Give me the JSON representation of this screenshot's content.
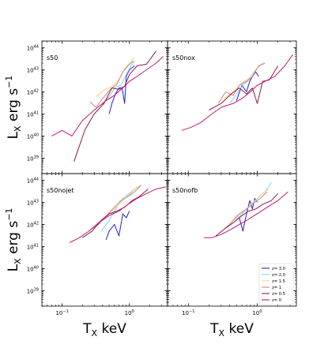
{
  "chart_data": {
    "type": "line",
    "x_scale": "log",
    "y_scale": "log",
    "xlim": [
      0.05,
      3.7
    ],
    "ylim": [
      2e+38,
      2e+44
    ],
    "xlabel": "T_X keV",
    "ylabel": "L_X erg s^-1",
    "xlabel_parts": {
      "main": "T",
      "sub": "X",
      "rest": " keV"
    },
    "ylabel_parts": {
      "main": "L",
      "sub": "X",
      "mid": " erg s",
      "sup": "−1"
    },
    "x_ticks": [
      {
        "value": 0.1,
        "base": "10",
        "exp": "−1"
      },
      {
        "value": 1,
        "base": "10",
        "exp": "0"
      }
    ],
    "y_ticks": [
      {
        "value": 1e+39,
        "base": "10",
        "exp": "39"
      },
      {
        "value": 1e+40,
        "base": "10",
        "exp": "40"
      },
      {
        "value": 1e+41,
        "base": "10",
        "exp": "41"
      },
      {
        "value": 1e+42,
        "base": "10",
        "exp": "42"
      },
      {
        "value": 1e+43,
        "base": "10",
        "exp": "43"
      },
      {
        "value": 1e+44,
        "base": "10",
        "exp": "44"
      }
    ],
    "legend": {
      "position": "lower-right",
      "entries": [
        {
          "label": "z= 3.0",
          "color": "#1f1fe0"
        },
        {
          "label": "z= 2.0",
          "color": "#7fd6f0"
        },
        {
          "label": "z= 1.5",
          "color": "#e8d48a"
        },
        {
          "label": "z= 1",
          "color": "#d98080"
        },
        {
          "label": "z= 0.5",
          "color": "#8b1a4a"
        },
        {
          "label": "z= 0",
          "color": "#c0177a"
        }
      ]
    },
    "panels": [
      {
        "title": "s50",
        "series": [
          {
            "name": "z= 3.0",
            "x": [
              0.5,
              0.55,
              0.62,
              0.7,
              0.78,
              0.85,
              0.9,
              1.0,
              1.2
            ],
            "y": [
              1e+41,
              3e+41,
              8e+41,
              1.5e+42,
              1.5e+42,
              3e+41,
              5e+42,
              1e+43,
              1.5e+43
            ]
          },
          {
            "name": "z= 2.0",
            "x": [
              0.4,
              0.5,
              0.6,
              0.75,
              0.9,
              1.05,
              1.2
            ],
            "y": [
              3e+41,
              6e+41,
              1.5e+42,
              2e+42,
              6e+42,
              1.5e+43,
              2.5e+43
            ]
          },
          {
            "name": "z= 1.5",
            "x": [
              0.32,
              0.42,
              0.55,
              0.7,
              0.85,
              1.0,
              1.2
            ],
            "y": [
              6e+41,
              1.2e+42,
              1.8e+42,
              3.5e+42,
              1.1e+43,
              2e+43,
              3.5e+43
            ]
          },
          {
            "name": "z= 1",
            "x": [
              0.26,
              0.32,
              0.4,
              0.52,
              0.65,
              0.8,
              0.95,
              1.15
            ],
            "y": [
              3.5e+41,
              2e+41,
              5e+41,
              1.3e+42,
              2.2e+42,
              8e+42,
              1.5e+43,
              2.5e+43
            ]
          },
          {
            "name": "z= 0.5",
            "x": [
              0.15,
              0.22,
              0.3,
              0.42,
              0.55,
              0.7,
              0.85,
              1.0,
              1.3,
              1.8,
              2.5
            ],
            "y": [
              7e+38,
              2e+40,
              1e+41,
              3e+41,
              1.5e+42,
              1.3e+42,
              1.8e+42,
              6e+42,
              1.5e+43,
              1.8e+43,
              7e+43
            ]
          },
          {
            "name": "z= 0",
            "x": [
              0.07,
              0.1,
              0.14,
              0.2,
              0.3,
              0.45,
              0.6,
              0.8,
              1.0,
              1.3,
              1.8,
              2.5,
              3.2
            ],
            "y": [
              1e+40,
              1.8e+40,
              1e+40,
              5e+40,
              1.5e+41,
              4e+41,
              7e+41,
              1.5e+42,
              3e+42,
              5e+42,
              1e+43,
              2e+43,
              4e+43
            ]
          }
        ]
      },
      {
        "title": "s50nox",
        "series": [
          {
            "name": "z= 3.0",
            "x": [
              0.5,
              0.6,
              0.7,
              0.78,
              0.85,
              0.95,
              1.05
            ],
            "y": [
              4e+41,
              2e+42,
              1e+42,
              3e+42,
              5e+42,
              8e+42,
              5e+42
            ]
          },
          {
            "name": "z= 2.0",
            "x": [
              0.4,
              0.5,
              0.62,
              0.8,
              1.0,
              1.2
            ],
            "y": [
              3e+41,
              8e+41,
              2e+42,
              4e+42,
              1.2e+43,
              2e+43
            ]
          },
          {
            "name": "z= 1.5",
            "x": [
              0.33,
              0.45,
              0.6,
              0.75,
              0.95,
              1.15
            ],
            "y": [
              5e+41,
              1e+42,
              2.5e+42,
              4e+42,
              1e+43,
              1.8e+43
            ]
          },
          {
            "name": "z= 1",
            "x": [
              0.27,
              0.35,
              0.45,
              0.55,
              0.7,
              0.85,
              1.05,
              1.3
            ],
            "y": [
              3e+41,
              1e+42,
              7e+41,
              2e+42,
              3e+42,
              5e+42,
              1.5e+43,
              2e+43
            ]
          },
          {
            "name": "z= 0.5",
            "x": [
              0.2,
              0.3,
              0.42,
              0.55,
              0.7,
              0.85,
              1.0,
              1.2,
              1.5,
              2.0
            ],
            "y": [
              1.5e+41,
              3e+41,
              8e+41,
              1.5e+42,
              8e+41,
              1.5e+42,
              3e+41,
              3e+42,
              3.5e+42,
              1.5e+43
            ]
          },
          {
            "name": "z= 0",
            "x": [
              0.08,
              0.11,
              0.15,
              0.22,
              0.3,
              0.45,
              0.6,
              0.8,
              1.0,
              1.3,
              1.8,
              2.5,
              3.3
            ],
            "y": [
              1.8e+40,
              2.5e+40,
              4e+40,
              1e+41,
              2e+41,
              3e+41,
              5e+41,
              1e+42,
              2e+42,
              3e+42,
              5e+42,
              1.5e+43,
              5e+43
            ]
          }
        ]
      },
      {
        "title": "s50nojet",
        "series": [
          {
            "name": "z= 3.0",
            "x": [
              0.45,
              0.5,
              0.6,
              0.7,
              0.8,
              0.9,
              1.0
            ],
            "y": [
              2e+41,
              5e+41,
              1e+42,
              3e+41,
              3e+42,
              2e+42,
              4e+42
            ]
          },
          {
            "name": "z= 2.0",
            "x": [
              0.38,
              0.5,
              0.65,
              0.8,
              1.0,
              1.2,
              1.5
            ],
            "y": [
              5e+41,
              1.5e+42,
              6e+42,
              1.5e+43,
              2.5e+43,
              4e+43,
              6e+43
            ]
          },
          {
            "name": "z= 1.5",
            "x": [
              0.3,
              0.42,
              0.55,
              0.7,
              0.85,
              1.05,
              1.3
            ],
            "y": [
              8e+41,
              2e+42,
              4e+42,
              8e+42,
              1.5e+43,
              2.5e+43,
              5e+43
            ]
          },
          {
            "name": "z= 1",
            "x": [
              0.25,
              0.35,
              0.48,
              0.6,
              0.75,
              0.95,
              1.2,
              1.5
            ],
            "y": [
              5e+41,
              1e+42,
              3e+42,
              6e+42,
              1.2e+43,
              1.8e+43,
              3e+43,
              6e+43
            ]
          },
          {
            "name": "z= 0.5",
            "x": [
              0.2,
              0.28,
              0.38,
              0.5,
              0.65,
              0.85,
              1.1,
              1.4,
              1.9
            ],
            "y": [
              2.5e+41,
              5e+41,
              1.5e+42,
              3e+42,
              4e+42,
              6e+42,
              1.2e+43,
              1.8e+43,
              4e+43
            ]
          },
          {
            "name": "z= 0",
            "x": [
              0.13,
              0.18,
              0.25,
              0.35,
              0.5,
              0.7,
              0.95,
              1.3,
              1.8,
              2.5,
              3.5
            ],
            "y": [
              1.5e+41,
              2.5e+41,
              5e+41,
              1.2e+42,
              2.5e+42,
              4e+42,
              8e+42,
              1.5e+43,
              2.5e+43,
              4e+43,
              5e+43
            ]
          }
        ]
      },
      {
        "title": "s50nofb",
        "series": [
          {
            "name": "z= 3.0",
            "x": [
              0.55,
              0.62,
              0.7,
              0.78,
              0.85,
              0.92,
              1.0
            ],
            "y": [
              2e+42,
              5e+41,
              3e+42,
              1.2e+43,
              5e+42,
              1.5e+43,
              1e+43
            ]
          },
          {
            "name": "z= 2.0",
            "x": [
              0.48,
              0.6,
              0.75,
              0.9,
              1.1,
              1.3,
              1.6
            ],
            "y": [
              1.5e+42,
              3e+42,
              6e+42,
              1e+43,
              2e+43,
              3e+43,
              8e+43
            ]
          },
          {
            "name": "z= 1.5",
            "x": [
              0.4,
              0.5,
              0.65,
              0.8,
              1.0,
              1.2,
              1.45
            ],
            "y": [
              1e+42,
              2.5e+42,
              4e+42,
              8e+42,
              1.5e+43,
              2.5e+43,
              4e+43
            ]
          },
          {
            "name": "z= 1",
            "x": [
              0.33,
              0.42,
              0.55,
              0.7,
              0.88,
              1.1,
              1.4
            ],
            "y": [
              6e+41,
              1.2e+42,
              3e+42,
              5e+42,
              9e+42,
              1.5e+43,
              3e+43
            ]
          },
          {
            "name": "z= 0.5",
            "x": [
              0.25,
              0.33,
              0.45,
              0.6,
              0.75,
              0.95,
              1.2,
              1.6,
              2.0
            ],
            "y": [
              3e+41,
              6e+41,
              1.2e+42,
              2.5e+42,
              4e+42,
              5e+42,
              8e+42,
              1.2e+43,
              2.5e+43
            ]
          },
          {
            "name": "z= 0",
            "x": [
              0.17,
              0.22,
              0.3,
              0.42,
              0.55,
              0.7,
              0.9,
              1.15,
              1.5,
              2.0,
              2.8
            ],
            "y": [
              2.5e+41,
              2.5e+41,
              3.5e+41,
              6e+41,
              1e+42,
              1.5e+42,
              2.5e+42,
              4e+42,
              7e+42,
              1.2e+43,
              3e+43
            ]
          }
        ]
      }
    ]
  }
}
